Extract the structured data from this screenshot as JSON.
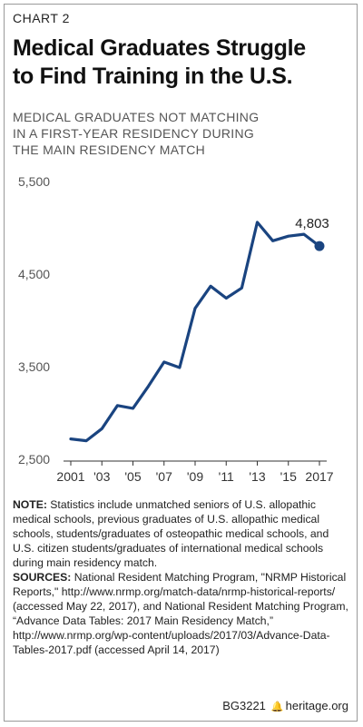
{
  "chart_label": "CHART 2",
  "title_line1": "Medical Graduates Struggle",
  "title_line2": "to Find Training in the U.S.",
  "subtitle_line1": "MEDICAL GRADUATES NOT MATCHING",
  "subtitle_line2": "IN A FIRST-YEAR RESIDENCY DURING",
  "subtitle_line3": "THE MAIN RESIDENCY MATCH",
  "chart_data": {
    "type": "line",
    "x": [
      2001,
      2002,
      2003,
      2004,
      2005,
      2006,
      2007,
      2008,
      2009,
      2010,
      2011,
      2012,
      2013,
      2014,
      2015,
      2016,
      2017
    ],
    "series": [
      {
        "values": [
          2720,
          2700,
          2830,
          3080,
          3050,
          3290,
          3550,
          3490,
          4130,
          4370,
          4240,
          4350,
          5060,
          4860,
          4910,
          4930,
          4803
        ]
      }
    ],
    "x_tick_labels": [
      "2001",
      "'03",
      "'05",
      "'07",
      "'09",
      "'11",
      "'13",
      "'15",
      "2017"
    ],
    "x_tick_values": [
      2001,
      2003,
      2005,
      2007,
      2009,
      2011,
      2013,
      2015,
      2017
    ],
    "y_ticks": [
      2500,
      3500,
      4500,
      5500
    ],
    "y_tick_labels": [
      "2,500",
      "3,500",
      "4,500",
      "5,500"
    ],
    "ylim": [
      2500,
      5500
    ],
    "xlim": [
      2001,
      2017
    ],
    "last_point_label": "4,803",
    "grid": false,
    "line_color": "#1a4480"
  },
  "notes": {
    "note_label": "NOTE:",
    "note_text": " Statistics include unmatched seniors of U.S. allopathic medical schools, previous graduates of U.S. allopathic medical schools, students/graduates of osteopathic medical schools, and U.S. citizen students/graduates of international medical schools during main residency match.",
    "sources_label": "SOURCES:",
    "sources_text": " National Resident Matching Program, \"NRMP Historical Reports,\" http://www.nrmp.org/match-data/nrmp-historical-reports/ (accessed May 22, 2017), and National Resident Matching Program, “Advance Data Tables: 2017 Main Residency Match,” http://www.nrmp.org/wp-content/uploads/2017/03/Advance-Data-Tables-2017.pdf (accessed April 14, 2017)"
  },
  "footer": {
    "code": "BG3221",
    "site": "heritage.org"
  }
}
